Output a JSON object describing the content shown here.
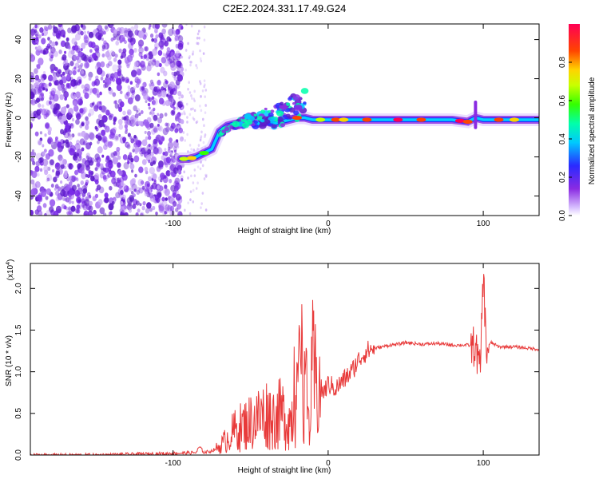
{
  "title": "C2E2.2024.331.17.49.G24",
  "chart_data": [
    {
      "type": "heatmap",
      "title": "C2E2.2024.331.17.49.G24",
      "xlabel": "Height of straight line (km)",
      "ylabel": "Frequency (Hz)",
      "xlim": [
        -192,
        136
      ],
      "ylim": [
        -50,
        48
      ],
      "x_ticks": [
        -100,
        0,
        100
      ],
      "x_tick_labels": [
        "-100",
        "0",
        "100"
      ],
      "y_ticks": [
        -40,
        -20,
        0,
        20,
        40
      ],
      "y_tick_labels": [
        "-40",
        "-20",
        "0",
        "20",
        "40"
      ],
      "noise_region_km": [
        -192,
        -94
      ],
      "sparse_noise_region_km": [
        -97,
        -78
      ],
      "ridge": {
        "x": [
          -95,
          -90,
          -85,
          -80,
          -75,
          -70,
          -65,
          -60,
          -55,
          -50,
          -45,
          -40,
          -35,
          -30,
          -25,
          -20,
          -15,
          -10,
          -5,
          0,
          10,
          20,
          40,
          60,
          80,
          90,
          95,
          100,
          120,
          136
        ],
        "y": [
          -21,
          -21,
          -20,
          -18,
          -16,
          -7,
          -4,
          -3,
          -2.5,
          -2,
          -3,
          -2,
          -3,
          -2,
          -1,
          0,
          0,
          -1,
          -1,
          -1,
          -1,
          -1,
          -1,
          -1,
          -1,
          -2,
          0,
          -1,
          -1,
          -1
        ]
      },
      "colorbar": {
        "label": "Normalized spectral amplitude",
        "ticks": [
          0.0,
          0.2,
          0.4,
          0.6,
          0.8
        ],
        "tick_labels": [
          "0.0",
          "0.2",
          "0.4",
          "0.6",
          "0.8"
        ],
        "range": [
          0,
          1
        ]
      }
    },
    {
      "type": "line",
      "xlabel": "Height of straight line (km)",
      "ylabel": "SNR (10 * v/v)",
      "multiplier": "(x10",
      "multiplier_exp": "4",
      "xlim": [
        -192,
        136
      ],
      "ylim": [
        0,
        2.3
      ],
      "x_ticks": [
        -100,
        0,
        100
      ],
      "x_tick_labels": [
        "-100",
        "0",
        "100"
      ],
      "y_ticks": [
        0.0,
        0.5,
        1.0,
        1.5,
        2.0
      ],
      "y_tick_labels": [
        "0.0",
        "0.5",
        "1.0",
        "1.5",
        "2.0"
      ],
      "line_color": "#e83a3a",
      "series": [
        {
          "name": "SNR",
          "x": [
            -192,
            -150,
            -100,
            -85,
            -83,
            -80,
            -75,
            -70,
            -65,
            -60,
            -55,
            -50,
            -45,
            -40,
            -35,
            -30,
            -25,
            -20,
            -17,
            -15,
            -12,
            -10,
            -8,
            -5,
            -3,
            0,
            5,
            10,
            15,
            20,
            25,
            30,
            35,
            40,
            45,
            50,
            60,
            70,
            80,
            90,
            95,
            98,
            100,
            102,
            105,
            110,
            120,
            130,
            136
          ],
          "y": [
            0.0,
            0.0,
            0.02,
            0.03,
            0.1,
            0.03,
            0.05,
            0.1,
            0.2,
            0.3,
            0.35,
            0.4,
            0.45,
            0.5,
            0.45,
            0.5,
            0.4,
            0.6,
            1.0,
            0.9,
            0.3,
            1.0,
            0.85,
            0.8,
            0.75,
            0.85,
            0.8,
            0.9,
            1.0,
            1.15,
            1.25,
            1.28,
            1.3,
            1.32,
            1.33,
            1.35,
            1.33,
            1.34,
            1.32,
            1.32,
            1.3,
            1.0,
            2.2,
            1.25,
            1.35,
            1.3,
            1.3,
            1.28,
            1.27
          ]
        }
      ]
    }
  ]
}
